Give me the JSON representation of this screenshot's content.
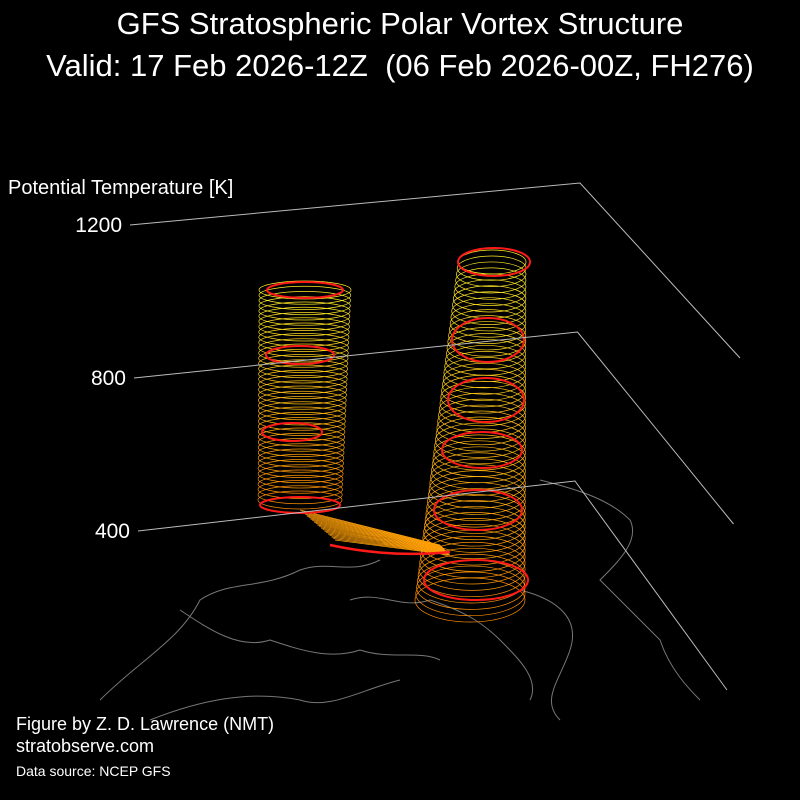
{
  "chart_data": {
    "type": "3d-surface",
    "title": "GFS Stratospheric Polar Vortex Structure",
    "subtitle": "Valid: 17 Feb 2026-12Z  (06 Feb 2026-00Z, FH276)",
    "z_label": "Potential Temperature [K]",
    "zlim": [
      400,
      1200
    ],
    "zticks": [
      400,
      800,
      1200
    ],
    "credit": "Figure by Z. D. Lawrence (NMT)",
    "website": "stratobserve.com",
    "source": "Data source: NCEP GFS"
  }
}
